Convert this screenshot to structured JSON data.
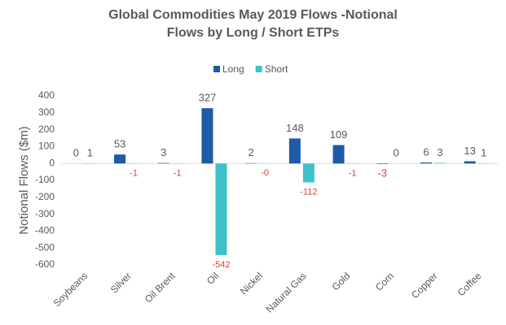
{
  "chart_data": {
    "type": "bar",
    "title": "Global Commodities May 2019 Flows -Notional Flows by Long / Short ETPs",
    "y_label": "Notional Flows ($m)",
    "categories": [
      "Soybeans",
      "Silver",
      "Oil Brent",
      "Oil",
      "Nickel",
      "Natural Gas",
      "Gold",
      "Corn",
      "Copper",
      "Coffee"
    ],
    "series": [
      {
        "name": "Long",
        "color": "#1f5aa6",
        "values": [
          0,
          53,
          3,
          327,
          2,
          148,
          109,
          -3,
          6,
          13
        ]
      },
      {
        "name": "Short",
        "color": "#3fc1c9",
        "values": [
          1,
          -1,
          -1,
          -542,
          -0.3,
          -112,
          -1,
          0,
          3,
          1
        ],
        "value_labels": [
          "1",
          "-1",
          "-1",
          "-542",
          "-0",
          "-112",
          "-1",
          "0",
          "3",
          "1"
        ]
      }
    ],
    "ylim": [
      -600,
      400
    ],
    "yticks": [
      -600,
      -500,
      -400,
      -300,
      -200,
      -100,
      0,
      100,
      200,
      300,
      400
    ],
    "legend": "top"
  }
}
